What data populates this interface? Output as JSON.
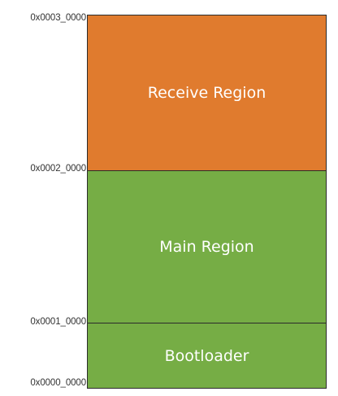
{
  "addresses": {
    "top": "0x0003_0000",
    "receive_base": "0x0002_0000",
    "main_base": "0x0001_0000",
    "bootloader_base": "0x0000_0000"
  },
  "regions": [
    {
      "label": "Receive Region",
      "color": "#E07B2E"
    },
    {
      "label": "Main Region",
      "color": "#76AD45"
    },
    {
      "label": "Bootloader",
      "color": "#76AD45"
    }
  ]
}
